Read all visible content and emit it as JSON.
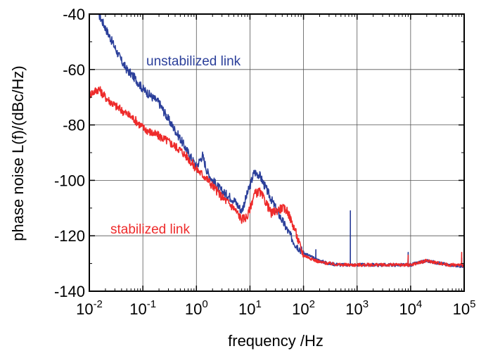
{
  "chart_data": {
    "type": "line",
    "title": "",
    "xlabel": "frequency /Hz",
    "ylabel": "phase noise L(f)/(dBc/Hz)",
    "x_scale": "log",
    "xlim": [
      0.01,
      100000
    ],
    "ylim": [
      -140,
      -40
    ],
    "grid": true,
    "x_ticks": [
      {
        "base": "10",
        "exp": "-2",
        "value": 0.01
      },
      {
        "base": "10",
        "exp": "-1",
        "value": 0.1
      },
      {
        "base": "10",
        "exp": "0",
        "value": 1
      },
      {
        "base": "10",
        "exp": "1",
        "value": 10
      },
      {
        "base": "10",
        "exp": "2",
        "value": 100
      },
      {
        "base": "10",
        "exp": "3",
        "value": 1000
      },
      {
        "base": "10",
        "exp": "4",
        "value": 10000
      },
      {
        "base": "10",
        "exp": "5",
        "value": 100000
      }
    ],
    "y_ticks": [
      "-40",
      "-60",
      "-80",
      "-100",
      "-120",
      "-140"
    ],
    "series": [
      {
        "name": "unstabilized link",
        "color": "#2b3f9a",
        "x": [
          0.015,
          0.02,
          0.03,
          0.04,
          0.05,
          0.07,
          0.1,
          0.15,
          0.2,
          0.3,
          0.5,
          0.7,
          1,
          1.3,
          1.6,
          2,
          3,
          5,
          7,
          10,
          12,
          15,
          20,
          30,
          50,
          70,
          100,
          150,
          200,
          300,
          500,
          700,
          1000,
          2000,
          5000,
          10000,
          20000,
          50000,
          100000
        ],
        "y": [
          -40,
          -45,
          -52,
          -57,
          -60,
          -63,
          -67,
          -70,
          -72,
          -78,
          -85,
          -90,
          -95,
          -91,
          -97,
          -100,
          -104,
          -107,
          -111,
          -102,
          -97,
          -98,
          -103,
          -110,
          -118,
          -123,
          -126,
          -128,
          -129,
          -130,
          -130.5,
          -130.5,
          -130.5,
          -130.5,
          -130.5,
          -130.5,
          -129,
          -130.5,
          -131
        ],
        "spikes": [
          {
            "x": 750,
            "y": -111
          },
          {
            "x": 170,
            "y": -125
          },
          {
            "x": 9000,
            "y": -126
          },
          {
            "x": 90000,
            "y": -128
          }
        ]
      },
      {
        "name": "stabilized link",
        "color": "#ee2b2b",
        "x": [
          0.01,
          0.015,
          0.02,
          0.03,
          0.05,
          0.07,
          0.1,
          0.15,
          0.2,
          0.3,
          0.5,
          0.7,
          1,
          1.5,
          2,
          3,
          5,
          7,
          9,
          12,
          15,
          20,
          25,
          30,
          40,
          50,
          60,
          70,
          80,
          100,
          150,
          200,
          300,
          500,
          1000,
          2000,
          5000,
          10000,
          20000,
          50000,
          100000
        ],
        "y": [
          -69,
          -67,
          -70,
          -73,
          -76,
          -78,
          -81,
          -83,
          -84,
          -86,
          -89,
          -92,
          -96,
          -99,
          -102,
          -106,
          -110,
          -114,
          -113,
          -105,
          -104,
          -108,
          -112,
          -111,
          -110,
          -111,
          -115,
          -118,
          -122,
          -127,
          -128.5,
          -129.5,
          -130,
          -130.5,
          -130.5,
          -130.5,
          -130.5,
          -130.5,
          -129,
          -130.5,
          -130.5
        ],
        "spikes": [
          {
            "x": 90000,
            "y": -126
          },
          {
            "x": 9000,
            "y": -127
          }
        ]
      }
    ]
  }
}
